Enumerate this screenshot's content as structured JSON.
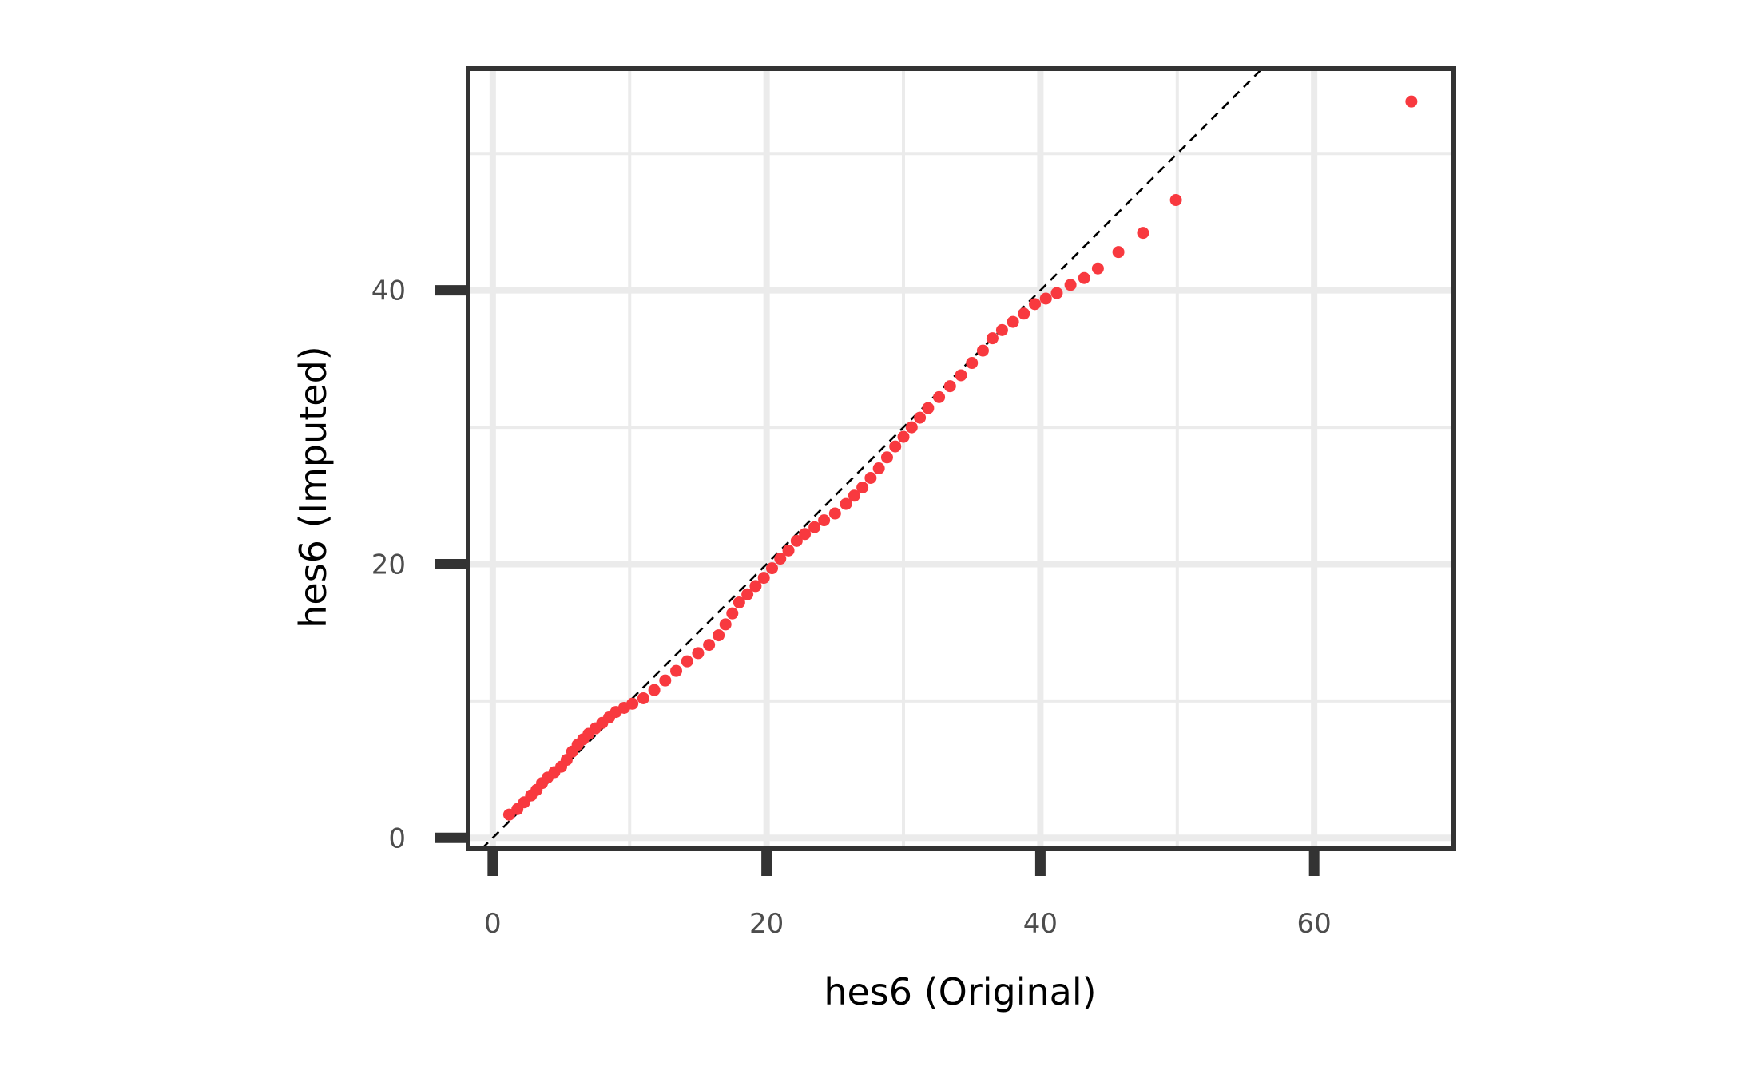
{
  "chart_data": {
    "type": "scatter",
    "title": "",
    "xlabel": "hes6 (Original)",
    "ylabel": "hes6 (Imputed)",
    "xlim": [
      -1.8,
      70.2
    ],
    "ylim": [
      -0.8,
      56.2
    ],
    "x_ticks": [
      0,
      20,
      40,
      60
    ],
    "x_tick_labels": [
      "0",
      "20",
      "40",
      "60"
    ],
    "x_minor_ticks": [
      10,
      30,
      50
    ],
    "y_ticks": [
      0,
      20,
      40
    ],
    "y_tick_labels": [
      "0",
      "20",
      "40"
    ],
    "y_minor_ticks": [
      10,
      30,
      50
    ],
    "grid": true,
    "legend": "none",
    "reference_line": {
      "type": "identity",
      "style": "dashed",
      "color": "#000000"
    },
    "point_color": "#f8393f",
    "grid_color": "#ebebeb",
    "axis_color": "#333333",
    "series": [
      {
        "x": [
          1.2,
          1.8,
          2.3,
          2.8,
          3.2,
          3.6,
          4.0,
          4.5,
          5.0,
          5.4,
          5.8,
          6.2,
          6.6,
          7.0,
          7.5,
          8.0,
          8.5,
          9.0,
          9.6,
          10.2,
          11.0,
          11.8,
          12.6,
          13.4,
          14.2,
          15.0,
          15.8,
          16.5,
          17.0,
          17.5,
          18.0,
          18.6,
          19.2,
          19.8,
          20.4,
          21.0,
          21.6,
          22.2,
          22.8,
          23.5,
          24.2,
          25.0,
          25.8,
          26.4,
          27.0,
          27.6,
          28.2,
          28.8,
          29.4,
          30.0,
          30.6,
          31.2,
          31.8,
          32.6,
          33.4,
          34.2,
          35.0,
          35.8,
          36.5,
          37.2,
          38.0,
          38.8,
          39.6,
          40.4,
          41.2,
          42.2,
          43.2,
          44.2,
          45.7,
          47.5,
          49.9,
          67.1
        ],
        "y": [
          1.7,
          2.1,
          2.6,
          3.1,
          3.5,
          4.0,
          4.4,
          4.8,
          5.2,
          5.7,
          6.3,
          6.8,
          7.2,
          7.6,
          8.0,
          8.4,
          8.8,
          9.2,
          9.5,
          9.8,
          10.2,
          10.8,
          11.5,
          12.2,
          12.9,
          13.5,
          14.1,
          14.8,
          15.6,
          16.4,
          17.2,
          17.8,
          18.4,
          19.0,
          19.7,
          20.4,
          21.0,
          21.7,
          22.2,
          22.7,
          23.2,
          23.7,
          24.4,
          25.0,
          25.6,
          26.3,
          27.0,
          27.8,
          28.6,
          29.3,
          30.0,
          30.7,
          31.4,
          32.2,
          33.0,
          33.8,
          34.7,
          35.6,
          36.5,
          37.1,
          37.7,
          38.3,
          39.0,
          39.4,
          39.8,
          40.4,
          40.9,
          41.6,
          42.8,
          44.2,
          46.6,
          53.8
        ]
      }
    ]
  }
}
